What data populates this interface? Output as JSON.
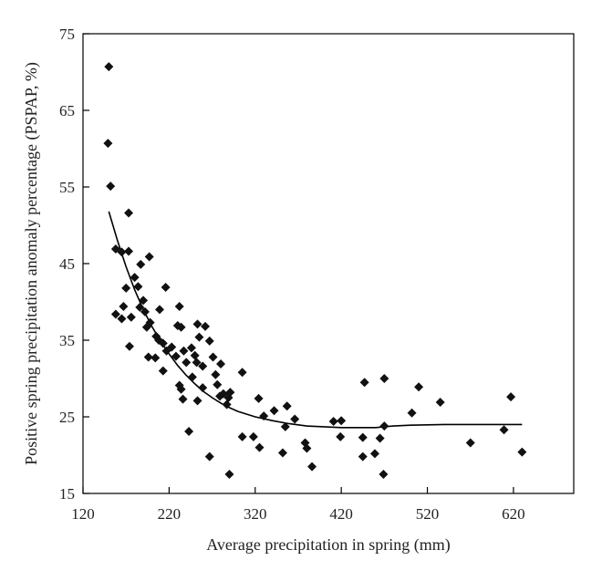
{
  "chart_data": {
    "type": "scatter",
    "xlabel": "Average precipitation in spring (mm)",
    "ylabel": "Positive spring precipitation anomaly percentage (PSPAP, %)",
    "xlim": [
      120,
      690
    ],
    "ylim": [
      15,
      75
    ],
    "xticks": [
      120,
      220,
      320,
      420,
      520,
      620
    ],
    "yticks": [
      15,
      25,
      35,
      45,
      55,
      65,
      75
    ],
    "grid": false,
    "legend": "none",
    "colors": {
      "points": "#111111",
      "fit_line": "#000000"
    },
    "points": [
      {
        "x": 150,
        "y": 70.7
      },
      {
        "x": 149,
        "y": 60.7
      },
      {
        "x": 152,
        "y": 55.1
      },
      {
        "x": 173,
        "y": 51.6
      },
      {
        "x": 158,
        "y": 46.9
      },
      {
        "x": 165,
        "y": 46.5
      },
      {
        "x": 173,
        "y": 46.6
      },
      {
        "x": 197,
        "y": 45.9
      },
      {
        "x": 187,
        "y": 44.9
      },
      {
        "x": 180,
        "y": 43.2
      },
      {
        "x": 184,
        "y": 42.0
      },
      {
        "x": 170,
        "y": 41.8
      },
      {
        "x": 190,
        "y": 40.2
      },
      {
        "x": 216,
        "y": 41.9
      },
      {
        "x": 186,
        "y": 39.3
      },
      {
        "x": 167,
        "y": 39.4
      },
      {
        "x": 158,
        "y": 38.4
      },
      {
        "x": 176,
        "y": 38.0
      },
      {
        "x": 165,
        "y": 37.8
      },
      {
        "x": 192,
        "y": 38.7
      },
      {
        "x": 198,
        "y": 37.3
      },
      {
        "x": 209,
        "y": 39.0
      },
      {
        "x": 232,
        "y": 39.4
      },
      {
        "x": 194,
        "y": 36.7
      },
      {
        "x": 230,
        "y": 36.9
      },
      {
        "x": 205,
        "y": 35.5
      },
      {
        "x": 234,
        "y": 36.7
      },
      {
        "x": 253,
        "y": 37.1
      },
      {
        "x": 262,
        "y": 36.8
      },
      {
        "x": 174,
        "y": 34.2
      },
      {
        "x": 196,
        "y": 32.8
      },
      {
        "x": 204,
        "y": 32.7
      },
      {
        "x": 208,
        "y": 35.0
      },
      {
        "x": 213,
        "y": 34.6
      },
      {
        "x": 217,
        "y": 33.6
      },
      {
        "x": 223,
        "y": 34.1
      },
      {
        "x": 228,
        "y": 32.9
      },
      {
        "x": 237,
        "y": 33.6
      },
      {
        "x": 240,
        "y": 32.1
      },
      {
        "x": 246,
        "y": 34.0
      },
      {
        "x": 250,
        "y": 33.0
      },
      {
        "x": 252,
        "y": 32.1
      },
      {
        "x": 255,
        "y": 35.4
      },
      {
        "x": 259,
        "y": 31.6
      },
      {
        "x": 267,
        "y": 34.9
      },
      {
        "x": 271,
        "y": 32.8
      },
      {
        "x": 274,
        "y": 30.5
      },
      {
        "x": 280,
        "y": 31.9
      },
      {
        "x": 213,
        "y": 31.0
      },
      {
        "x": 247,
        "y": 30.2
      },
      {
        "x": 253,
        "y": 27.1
      },
      {
        "x": 259,
        "y": 28.8
      },
      {
        "x": 234,
        "y": 28.6
      },
      {
        "x": 232,
        "y": 29.1
      },
      {
        "x": 236,
        "y": 27.3
      },
      {
        "x": 276,
        "y": 29.2
      },
      {
        "x": 279,
        "y": 27.7
      },
      {
        "x": 283,
        "y": 28.0
      },
      {
        "x": 289,
        "y": 27.5
      },
      {
        "x": 291,
        "y": 28.2
      },
      {
        "x": 287,
        "y": 26.6
      },
      {
        "x": 305,
        "y": 30.8
      },
      {
        "x": 324,
        "y": 27.4
      },
      {
        "x": 330,
        "y": 25.1
      },
      {
        "x": 342,
        "y": 25.8
      },
      {
        "x": 357,
        "y": 26.4
      },
      {
        "x": 355,
        "y": 23.7
      },
      {
        "x": 366,
        "y": 24.7
      },
      {
        "x": 243,
        "y": 23.1
      },
      {
        "x": 267,
        "y": 19.8
      },
      {
        "x": 290,
        "y": 17.5
      },
      {
        "x": 305,
        "y": 22.4
      },
      {
        "x": 318,
        "y": 22.4
      },
      {
        "x": 325,
        "y": 21.0
      },
      {
        "x": 352,
        "y": 20.3
      },
      {
        "x": 378,
        "y": 21.6
      },
      {
        "x": 380,
        "y": 20.9
      },
      {
        "x": 386,
        "y": 18.5
      },
      {
        "x": 411,
        "y": 24.4
      },
      {
        "x": 420,
        "y": 24.5
      },
      {
        "x": 419,
        "y": 22.4
      },
      {
        "x": 445,
        "y": 22.3
      },
      {
        "x": 447,
        "y": 29.5
      },
      {
        "x": 445,
        "y": 19.8
      },
      {
        "x": 459,
        "y": 20.2
      },
      {
        "x": 465,
        "y": 22.2
      },
      {
        "x": 470,
        "y": 23.8
      },
      {
        "x": 470,
        "y": 30.0
      },
      {
        "x": 469,
        "y": 17.5
      },
      {
        "x": 502,
        "y": 25.5
      },
      {
        "x": 510,
        "y": 28.9
      },
      {
        "x": 535,
        "y": 26.9
      },
      {
        "x": 570,
        "y": 21.6
      },
      {
        "x": 609,
        "y": 23.3
      },
      {
        "x": 617,
        "y": 27.6
      },
      {
        "x": 630,
        "y": 20.4
      }
    ],
    "fit_curve": [
      {
        "x": 150,
        "y": 51.8
      },
      {
        "x": 160,
        "y": 48.0
      },
      {
        "x": 170,
        "y": 44.6
      },
      {
        "x": 180,
        "y": 41.6
      },
      {
        "x": 190,
        "y": 39.0
      },
      {
        "x": 200,
        "y": 36.8
      },
      {
        "x": 210,
        "y": 34.9
      },
      {
        "x": 220,
        "y": 33.2
      },
      {
        "x": 230,
        "y": 31.7
      },
      {
        "x": 240,
        "y": 30.4
      },
      {
        "x": 250,
        "y": 29.3
      },
      {
        "x": 260,
        "y": 28.3
      },
      {
        "x": 270,
        "y": 27.5
      },
      {
        "x": 280,
        "y": 26.8
      },
      {
        "x": 290,
        "y": 26.2
      },
      {
        "x": 300,
        "y": 25.7
      },
      {
        "x": 320,
        "y": 25.0
      },
      {
        "x": 340,
        "y": 24.5
      },
      {
        "x": 360,
        "y": 24.1
      },
      {
        "x": 380,
        "y": 23.8
      },
      {
        "x": 400,
        "y": 23.7
      },
      {
        "x": 420,
        "y": 23.6
      },
      {
        "x": 440,
        "y": 23.6
      },
      {
        "x": 460,
        "y": 23.6
      },
      {
        "x": 480,
        "y": 23.8
      },
      {
        "x": 500,
        "y": 23.9
      },
      {
        "x": 540,
        "y": 24.0
      },
      {
        "x": 580,
        "y": 24.0
      },
      {
        "x": 620,
        "y": 24.0
      },
      {
        "x": 630,
        "y": 24.0
      }
    ]
  }
}
